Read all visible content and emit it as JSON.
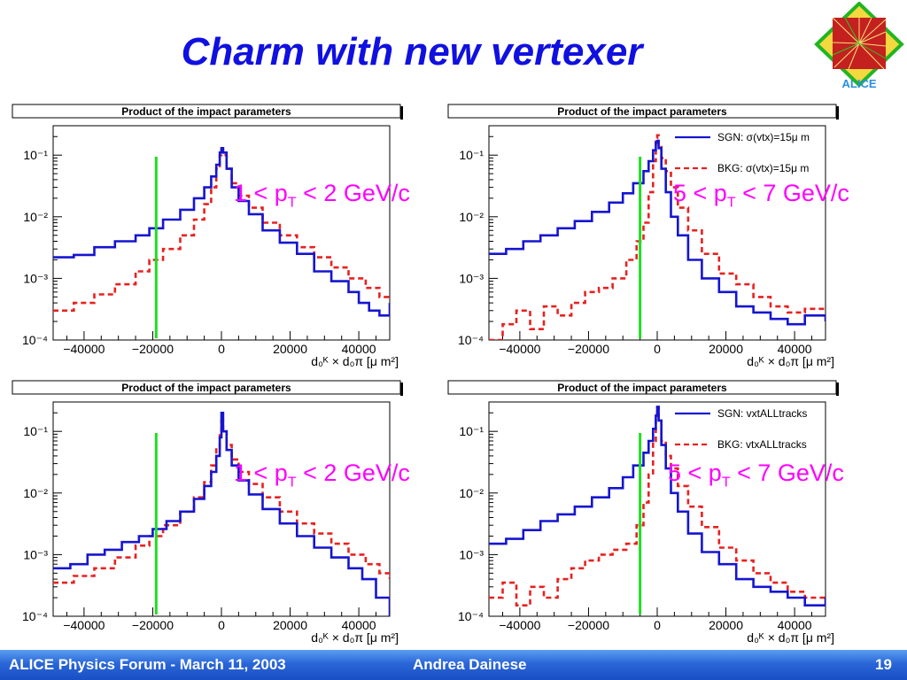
{
  "slide": {
    "title": "Charm with new vertexer",
    "logo_text": "ALICE",
    "footer_left": "ALICE Physics Forum - March 11, 2003",
    "footer_center": "Andrea Dainese",
    "page_number": "19"
  },
  "colors": {
    "signal": "#1515d0",
    "background": "#e82020",
    "cut_line": "#22dd22",
    "title": "#1010e0",
    "annotation": "#ff00ff"
  },
  "chart_data": [
    {
      "id": "tl",
      "type": "line",
      "title": "Product of the impact parameters",
      "xlabel": "d₀ᴷ × d₀π [μ m²]",
      "ylabel": "",
      "log_y": true,
      "xlim": [
        -49000,
        49000
      ],
      "ylim": [
        0.0001,
        0.3
      ],
      "x_ticks": [
        "-40000",
        "-20000",
        "0",
        "20000",
        "40000"
      ],
      "y_ticks": [
        "10⁻⁴",
        "10⁻³",
        "10⁻²",
        "10⁻¹"
      ],
      "annotation": {
        "pre": "1 < p",
        "sub": "T",
        "post": " < 2 GeV/c"
      },
      "cut_x": -19000,
      "legend": [],
      "series": [
        {
          "name": "",
          "role": "signal",
          "x": [
            -49000,
            -43000,
            -37000,
            -31000,
            -25000,
            -21000,
            -17000,
            -12000,
            -8000,
            -5000,
            -3000,
            -1500,
            -500,
            0,
            500,
            1500,
            3000,
            5000,
            8000,
            12000,
            17000,
            22000,
            27000,
            32000,
            37000,
            40000,
            43000,
            46000,
            49000
          ],
          "y": [
            0.0022,
            0.0024,
            0.0032,
            0.004,
            0.005,
            0.0065,
            0.009,
            0.013,
            0.02,
            0.03,
            0.045,
            0.07,
            0.11,
            0.13,
            0.11,
            0.06,
            0.03,
            0.018,
            0.011,
            0.006,
            0.0038,
            0.0025,
            0.0013,
            0.0009,
            0.0006,
            0.0004,
            0.0003,
            0.00025,
            0.0004
          ]
        },
        {
          "name": "",
          "role": "background",
          "x": [
            -49000,
            -43000,
            -37000,
            -31000,
            -25000,
            -21000,
            -17000,
            -12000,
            -8000,
            -5000,
            -3000,
            -1500,
            -500,
            0,
            500,
            1500,
            3000,
            5000,
            8000,
            12000,
            17000,
            22000,
            27000,
            32000,
            37000,
            42000,
            46000,
            49000
          ],
          "y": [
            0.0003,
            0.0004,
            0.00055,
            0.0008,
            0.0013,
            0.002,
            0.003,
            0.005,
            0.009,
            0.016,
            0.03,
            0.06,
            0.1,
            0.12,
            0.1,
            0.06,
            0.035,
            0.022,
            0.014,
            0.008,
            0.005,
            0.0032,
            0.0022,
            0.0015,
            0.001,
            0.0007,
            0.0005,
            0.0005
          ]
        }
      ]
    },
    {
      "id": "tr",
      "type": "line",
      "title": "Product of the impact parameters",
      "xlabel": "d₀ᴷ × d₀π [μ m²]",
      "ylabel": "",
      "log_y": true,
      "xlim": [
        -49000,
        49000
      ],
      "ylim": [
        0.0001,
        0.3
      ],
      "x_ticks": [
        "-40000",
        "-20000",
        "0",
        "20000",
        "40000"
      ],
      "y_ticks": [
        "10⁻⁴",
        "10⁻³",
        "10⁻²",
        "10⁻¹"
      ],
      "annotation": {
        "pre": "5 < p",
        "sub": "T",
        "post": " < 7 GeV/c"
      },
      "cut_x": -5000,
      "legend": [
        {
          "label": "SGN: σ(vtx)=15μ m",
          "role": "signal"
        },
        {
          "label": "BKG: σ(vtx)=15μ m",
          "role": "background"
        }
      ],
      "series": [
        {
          "name": "SGN: σ(vtx)=15μ m",
          "role": "signal",
          "x": [
            -49000,
            -44000,
            -39000,
            -34000,
            -29000,
            -24000,
            -19000,
            -14000,
            -10000,
            -7000,
            -4000,
            -2500,
            -1200,
            -400,
            0,
            400,
            1200,
            2500,
            4000,
            6000,
            9000,
            13000,
            18000,
            23000,
            28000,
            33000,
            38000,
            43000,
            49000
          ],
          "y": [
            0.0025,
            0.003,
            0.004,
            0.005,
            0.0065,
            0.0085,
            0.012,
            0.017,
            0.024,
            0.035,
            0.055,
            0.08,
            0.12,
            0.16,
            0.17,
            0.13,
            0.06,
            0.025,
            0.01,
            0.005,
            0.002,
            0.001,
            0.0006,
            0.00035,
            0.00028,
            0.00022,
            0.00018,
            0.00025,
            0.0002
          ]
        },
        {
          "name": "BKG: σ(vtx)=15μ m",
          "role": "background",
          "x": [
            -49000,
            -45000,
            -41000,
            -37000,
            -33000,
            -29000,
            -25000,
            -21000,
            -17000,
            -13000,
            -9000,
            -6000,
            -4000,
            -2500,
            -1200,
            -400,
            0,
            400,
            1200,
            2500,
            4000,
            6000,
            9000,
            13000,
            18000,
            23000,
            28000,
            33000,
            38000,
            43000,
            49000
          ],
          "y": [
            0.0001,
            0.00018,
            0.0003,
            0.00015,
            0.00035,
            0.00025,
            0.0004,
            0.0006,
            0.0007,
            0.001,
            0.002,
            0.004,
            0.008,
            0.025,
            0.08,
            0.19,
            0.21,
            0.15,
            0.09,
            0.055,
            0.03,
            0.014,
            0.006,
            0.0025,
            0.0012,
            0.0008,
            0.0005,
            0.00035,
            0.00028,
            0.00032,
            0.0003
          ]
        }
      ]
    },
    {
      "id": "bl",
      "type": "line",
      "title": "Product of the impact parameters",
      "xlabel": "d₀ᴷ × d₀π [μ m²]",
      "ylabel": "",
      "log_y": true,
      "xlim": [
        -49000,
        49000
      ],
      "ylim": [
        0.0001,
        0.3
      ],
      "x_ticks": [
        "-40000",
        "-20000",
        "0",
        "20000",
        "40000"
      ],
      "y_ticks": [
        "10⁻⁴",
        "10⁻³",
        "10⁻²",
        "10⁻¹"
      ],
      "annotation": {
        "pre": "1 < p",
        "sub": "T",
        "post": " < 2 GeV/c"
      },
      "cut_x": -19000,
      "legend": [],
      "series": [
        {
          "name": "",
          "role": "signal",
          "x": [
            -49000,
            -44000,
            -39000,
            -34000,
            -29000,
            -24000,
            -20000,
            -16000,
            -12000,
            -8000,
            -5000,
            -3000,
            -1500,
            -500,
            0,
            500,
            1500,
            3000,
            5000,
            8000,
            12000,
            17000,
            22000,
            27000,
            32000,
            37000,
            41000,
            45000,
            49000
          ],
          "y": [
            0.0006,
            0.0007,
            0.001,
            0.0012,
            0.0016,
            0.002,
            0.0026,
            0.0035,
            0.005,
            0.008,
            0.013,
            0.022,
            0.04,
            0.08,
            0.2,
            0.1,
            0.05,
            0.028,
            0.016,
            0.0095,
            0.0055,
            0.0032,
            0.002,
            0.0013,
            0.0009,
            0.0006,
            0.0004,
            0.0002,
            0.0001
          ]
        },
        {
          "name": "",
          "role": "background",
          "x": [
            -49000,
            -43000,
            -37000,
            -31000,
            -25000,
            -21000,
            -17000,
            -12000,
            -8000,
            -5000,
            -3000,
            -1500,
            -500,
            0,
            500,
            1500,
            3000,
            5000,
            8000,
            12000,
            17000,
            22000,
            27000,
            32000,
            37000,
            42000,
            46000,
            49000
          ],
          "y": [
            0.00035,
            0.00045,
            0.0006,
            0.0009,
            0.0014,
            0.002,
            0.003,
            0.005,
            0.0085,
            0.015,
            0.028,
            0.055,
            0.1,
            0.15,
            0.1,
            0.06,
            0.035,
            0.022,
            0.014,
            0.0085,
            0.005,
            0.0032,
            0.0022,
            0.0015,
            0.001,
            0.0007,
            0.0005,
            0.0004
          ]
        }
      ]
    },
    {
      "id": "br",
      "type": "line",
      "title": "Product of the impact parameters",
      "xlabel": "d₀ᴷ × d₀π [μ m²]",
      "ylabel": "",
      "log_y": true,
      "xlim": [
        -49000,
        49000
      ],
      "ylim": [
        0.0001,
        0.3
      ],
      "x_ticks": [
        "-40000",
        "-20000",
        "0",
        "20000",
        "40000"
      ],
      "y_ticks": [
        "10⁻⁴",
        "10⁻³",
        "10⁻²",
        "10⁻¹"
      ],
      "annotation": {
        "pre": "5 < p",
        "sub": "T",
        "post": " < 7 GeV/c"
      },
      "cut_x": -5000,
      "legend": [
        {
          "label": "SGN: vxtALLtracks",
          "role": "signal"
        },
        {
          "label": "BKG: vtxALLtracks",
          "role": "background"
        }
      ],
      "series": [
        {
          "name": "SGN: vxtALLtracks",
          "role": "signal",
          "x": [
            -49000,
            -44000,
            -39000,
            -34000,
            -29000,
            -24000,
            -19000,
            -14000,
            -10000,
            -7000,
            -4000,
            -2500,
            -1200,
            -400,
            0,
            400,
            1200,
            2500,
            4000,
            6000,
            9000,
            13000,
            18000,
            23000,
            28000,
            33000,
            38000,
            43000,
            49000
          ],
          "y": [
            0.0015,
            0.0018,
            0.0025,
            0.0035,
            0.0045,
            0.006,
            0.0085,
            0.012,
            0.018,
            0.028,
            0.045,
            0.07,
            0.11,
            0.18,
            0.25,
            0.15,
            0.06,
            0.025,
            0.01,
            0.005,
            0.0022,
            0.0011,
            0.0007,
            0.0004,
            0.0003,
            0.00025,
            0.0002,
            0.00015,
            0.0002
          ]
        },
        {
          "name": "BKG: vtxALLtracks",
          "role": "background",
          "x": [
            -49000,
            -45000,
            -41000,
            -37000,
            -33000,
            -29000,
            -25000,
            -21000,
            -17000,
            -13000,
            -9000,
            -6000,
            -4000,
            -2500,
            -1200,
            -400,
            0,
            400,
            1200,
            2500,
            4000,
            6000,
            9000,
            13000,
            18000,
            23000,
            28000,
            33000,
            38000,
            43000,
            49000
          ],
          "y": [
            0.0002,
            0.00035,
            0.00015,
            0.0003,
            0.0002,
            0.0004,
            0.0006,
            0.0008,
            0.001,
            0.0012,
            0.0015,
            0.003,
            0.007,
            0.02,
            0.07,
            0.18,
            0.25,
            0.15,
            0.07,
            0.04,
            0.025,
            0.013,
            0.006,
            0.0028,
            0.0013,
            0.0008,
            0.0005,
            0.00035,
            0.00025,
            0.0002,
            0.0002
          ]
        }
      ]
    }
  ]
}
